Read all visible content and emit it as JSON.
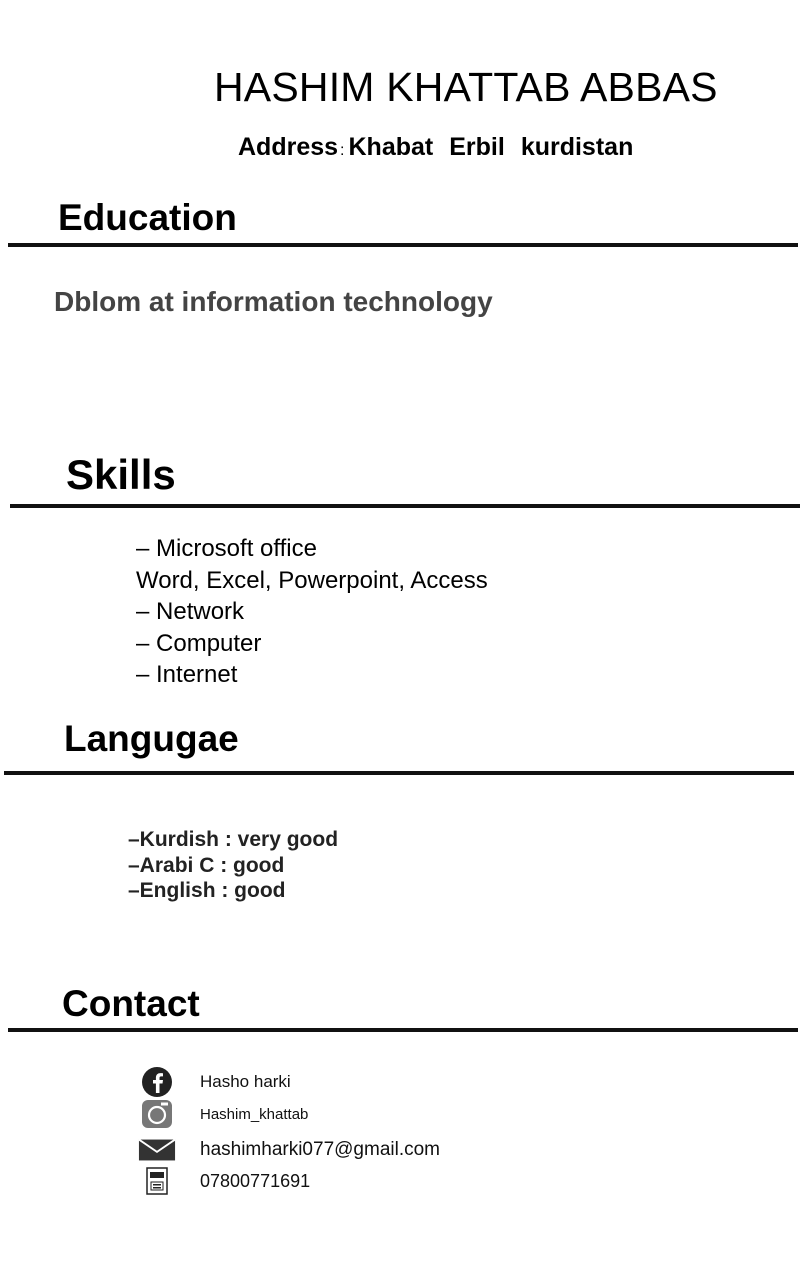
{
  "header": {
    "name": "HASHIM KHATTAB ABBAS",
    "address_label": "Address",
    "address_sep": ":",
    "address_parts": [
      "Khabat",
      "Erbil",
      "kurdistan"
    ]
  },
  "education": {
    "heading": "Education",
    "items": [
      "Dblom at information technology"
    ]
  },
  "skills": {
    "heading": "Skills",
    "items": [
      "– Microsoft office",
      "Word, Excel, Powerpoint, Access",
      "– Network",
      "– Computer",
      "– Internet"
    ]
  },
  "languages": {
    "heading": "Langugae",
    "items": [
      "–Kurdish : very good",
      "–Arabi C :  good",
      "–English  : good"
    ]
  },
  "contact": {
    "heading": "Contact",
    "items": [
      {
        "icon": "facebook-icon",
        "text": "Hasho harki"
      },
      {
        "icon": "instagram-icon",
        "text": "Hashim_khattab"
      },
      {
        "icon": "email-icon",
        "text": "hashimharki077@gmail.com"
      },
      {
        "icon": "phone-icon",
        "text": "07800771691"
      }
    ]
  },
  "colors": {
    "text": "#000000",
    "muted_text": "#444444",
    "rule": "#111111"
  }
}
